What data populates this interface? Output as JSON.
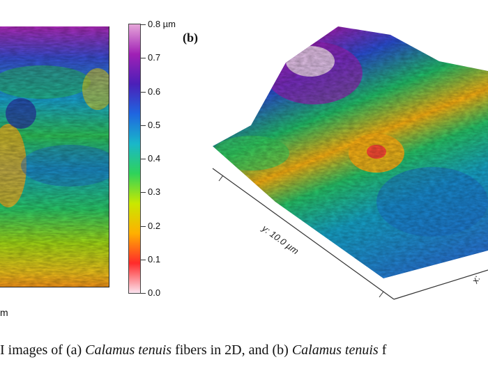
{
  "figure": {
    "panel_a": {
      "unit_fragment": "m"
    },
    "colorbar": {
      "ticks": [
        "0.8 µm",
        "0.7",
        "0.6",
        "0.5",
        "0.4",
        "0.3",
        "0.2",
        "0.1",
        "0.0"
      ],
      "colors": [
        "#fbe3ee",
        "#ff2a2a",
        "#ffb000",
        "#c9e800",
        "#2fd35a",
        "#19b7c9",
        "#1f66e0",
        "#4b1fb8",
        "#a020b5",
        "#e6a6d9"
      ]
    },
    "panel_b": {
      "label": "(b)",
      "y_axis_label": "y: 10.0 µm",
      "x_axis_label": "x:"
    }
  },
  "caption": {
    "part1": "I images of (a) ",
    "species1": "Calamus tenuis",
    "part2": " fibers in 2D, and (b) ",
    "species2": "Calamus tenuis",
    "part3": " f"
  }
}
